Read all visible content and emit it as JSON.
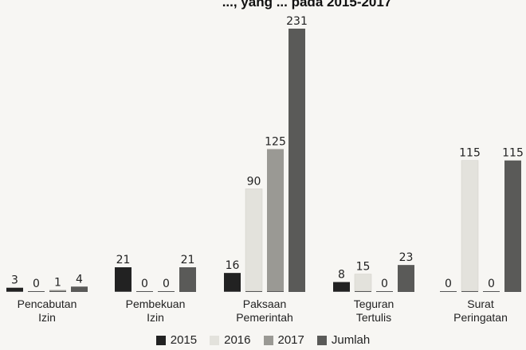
{
  "chart_data": {
    "type": "bar",
    "title": "..., yang  ... pada 2015-2017",
    "categories": [
      {
        "line1": "Pencabutan",
        "line2": "Izin"
      },
      {
        "line1": "Pembekuan",
        "line2": "Izin"
      },
      {
        "line1": "Paksaan",
        "line2": "Pemerintah"
      },
      {
        "line1": "Teguran",
        "line2": "Tertulis"
      },
      {
        "line1": "Surat",
        "line2": "Peringatan"
      }
    ],
    "series": [
      {
        "name": "2015",
        "color": "#222222",
        "values": [
          3,
          21,
          16,
          8,
          0
        ]
      },
      {
        "name": "2016",
        "color": "#e3e2dc",
        "values": [
          0,
          0,
          90,
          15,
          115
        ]
      },
      {
        "name": "2017",
        "color": "#9a9994",
        "values": [
          1,
          0,
          125,
          0,
          0
        ]
      },
      {
        "name": "Jumlah",
        "color": "#5a5a58",
        "values": [
          4,
          21,
          231,
          23,
          115
        ]
      }
    ],
    "ylim": [
      0,
      231
    ],
    "grid": false,
    "legend_position": "bottom"
  }
}
